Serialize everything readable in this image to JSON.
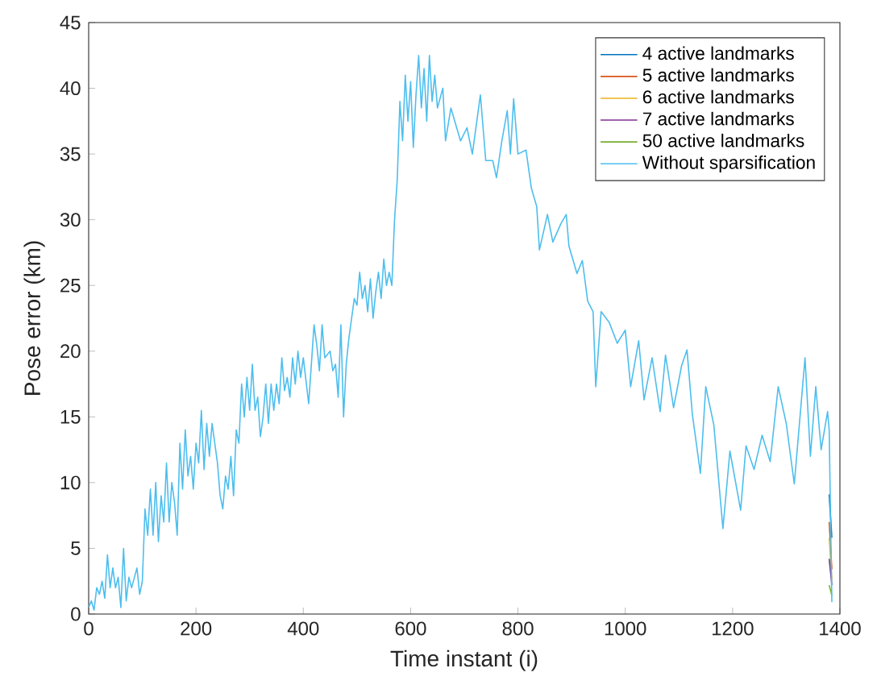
{
  "chart_data": {
    "type": "line",
    "xlabel": "Time instant (i)",
    "ylabel": "Pose error (km)",
    "xlim": [
      0,
      1400
    ],
    "ylim": [
      0,
      45
    ],
    "xticks": [
      0,
      200,
      400,
      600,
      800,
      1000,
      1200,
      1400
    ],
    "yticks": [
      0,
      5,
      10,
      15,
      20,
      25,
      30,
      35,
      40,
      45
    ],
    "legend": "top right",
    "grid": false,
    "x": [
      0,
      5,
      10,
      15,
      20,
      25,
      30,
      35,
      40,
      45,
      50,
      55,
      60,
      65,
      70,
      75,
      80,
      90,
      95,
      100,
      105,
      110,
      115,
      120,
      125,
      130,
      135,
      140,
      145,
      150,
      155,
      160,
      165,
      170,
      175,
      180,
      185,
      190,
      195,
      200,
      205,
      210,
      215,
      220,
      225,
      230,
      240,
      245,
      250,
      255,
      260,
      265,
      270,
      275,
      280,
      285,
      290,
      295,
      300,
      305,
      310,
      315,
      320,
      325,
      330,
      335,
      340,
      345,
      350,
      355,
      360,
      365,
      370,
      375,
      380,
      385,
      390,
      395,
      400,
      410,
      415,
      420,
      425,
      430,
      435,
      440,
      450,
      455,
      460,
      465,
      470,
      475,
      480,
      485,
      490,
      495,
      500,
      505,
      510,
      515,
      520,
      525,
      530,
      535,
      540,
      545,
      550,
      555,
      560,
      565,
      570,
      575,
      580,
      585,
      590,
      595,
      600,
      605,
      610,
      615,
      620,
      625,
      630,
      635,
      640,
      645,
      650,
      660,
      665,
      675,
      693,
      705,
      715,
      730,
      740,
      753,
      760,
      770,
      780,
      786,
      792,
      800,
      815,
      825,
      835,
      840,
      855,
      865,
      880,
      890,
      895,
      910,
      920,
      930,
      940,
      945,
      955,
      970,
      985,
      1000,
      1010,
      1025,
      1035,
      1050,
      1065,
      1075,
      1090,
      1105,
      1115,
      1125,
      1140,
      1150,
      1165,
      1182,
      1195,
      1215,
      1225,
      1240,
      1255,
      1270,
      1285,
      1300,
      1315,
      1335,
      1345,
      1355,
      1365,
      1377,
      1380,
      1385
    ],
    "series": [
      {
        "name": "4 active landmarks",
        "color": "#0072bd",
        "values": [
          null,
          null,
          null,
          null,
          null,
          null,
          null,
          null,
          null,
          null,
          null,
          null,
          null,
          null,
          null,
          null,
          null,
          null,
          null,
          null,
          null,
          null,
          null,
          null,
          null,
          null,
          null,
          null,
          null,
          null,
          null,
          null,
          null,
          null,
          null,
          null,
          null,
          null,
          null,
          null,
          null,
          null,
          null,
          null,
          null,
          null,
          null,
          null,
          null,
          null,
          null,
          null,
          null,
          null,
          null,
          null,
          null,
          null,
          null,
          null,
          null,
          null,
          null,
          null,
          null,
          null,
          null,
          null,
          null,
          null,
          null,
          null,
          null,
          null,
          null,
          null,
          null,
          null,
          null,
          null,
          null,
          null,
          null,
          null,
          null,
          null,
          null,
          null,
          null,
          null,
          null,
          null,
          null,
          null,
          null,
          null,
          null,
          null,
          null,
          null,
          null,
          null,
          null,
          null,
          null,
          null,
          null,
          null,
          null,
          null,
          null,
          null,
          null,
          null,
          null,
          null,
          null,
          null,
          null,
          null,
          null,
          null,
          null,
          null,
          null,
          null,
          null,
          null,
          null,
          null,
          null,
          null,
          null,
          null,
          null,
          null,
          null,
          null,
          null,
          null,
          null,
          null,
          null,
          null,
          null,
          null,
          null,
          null,
          null,
          null,
          null,
          null,
          null,
          null,
          null,
          null,
          null,
          null,
          null,
          null,
          null,
          null,
          null,
          null,
          null,
          null,
          null,
          null,
          null,
          null,
          null,
          null,
          null,
          null,
          null,
          null,
          null,
          null,
          null,
          null,
          null,
          null,
          null,
          null,
          null,
          null,
          null,
          null,
          9.1,
          5.8
        ]
      },
      {
        "name": "5 active landmarks",
        "color": "#d95319",
        "values": [
          null,
          null,
          null,
          null,
          null,
          null,
          null,
          null,
          null,
          null,
          null,
          null,
          null,
          null,
          null,
          null,
          null,
          null,
          null,
          null,
          null,
          null,
          null,
          null,
          null,
          null,
          null,
          null,
          null,
          null,
          null,
          null,
          null,
          null,
          null,
          null,
          null,
          null,
          null,
          null,
          null,
          null,
          null,
          null,
          null,
          null,
          null,
          null,
          null,
          null,
          null,
          null,
          null,
          null,
          null,
          null,
          null,
          null,
          null,
          null,
          null,
          null,
          null,
          null,
          null,
          null,
          null,
          null,
          null,
          null,
          null,
          null,
          null,
          null,
          null,
          null,
          null,
          null,
          null,
          null,
          null,
          null,
          null,
          null,
          null,
          null,
          null,
          null,
          null,
          null,
          null,
          null,
          null,
          null,
          null,
          null,
          null,
          null,
          null,
          null,
          null,
          null,
          null,
          null,
          null,
          null,
          null,
          null,
          null,
          null,
          null,
          null,
          null,
          null,
          null,
          null,
          null,
          null,
          null,
          null,
          null,
          null,
          null,
          null,
          null,
          null,
          null,
          null,
          null,
          null,
          null,
          null,
          null,
          null,
          null,
          null,
          null,
          null,
          null,
          null,
          null,
          null,
          null,
          null,
          null,
          null,
          null,
          null,
          null,
          null,
          null,
          null,
          null,
          null,
          null,
          null,
          null,
          null,
          null,
          null,
          null,
          null,
          null,
          null,
          null,
          null,
          null,
          null,
          null,
          null,
          null,
          null,
          null,
          null,
          null,
          null,
          null,
          null,
          null,
          null,
          null,
          null,
          null,
          null,
          null,
          null,
          null,
          null,
          7,
          3.4
        ]
      },
      {
        "name": "6 active landmarks",
        "color": "#edb120",
        "values": [
          null,
          null,
          null,
          null,
          null,
          null,
          null,
          null,
          null,
          null,
          null,
          null,
          null,
          null,
          null,
          null,
          null,
          null,
          null,
          null,
          null,
          null,
          null,
          null,
          null,
          null,
          null,
          null,
          null,
          null,
          null,
          null,
          null,
          null,
          null,
          null,
          null,
          null,
          null,
          null,
          null,
          null,
          null,
          null,
          null,
          null,
          null,
          null,
          null,
          null,
          null,
          null,
          null,
          null,
          null,
          null,
          null,
          null,
          null,
          null,
          null,
          null,
          null,
          null,
          null,
          null,
          null,
          null,
          null,
          null,
          null,
          null,
          null,
          null,
          null,
          null,
          null,
          null,
          null,
          null,
          null,
          null,
          null,
          null,
          null,
          null,
          null,
          null,
          null,
          null,
          null,
          null,
          null,
          null,
          null,
          null,
          null,
          null,
          null,
          null,
          null,
          null,
          null,
          null,
          null,
          null,
          null,
          null,
          null,
          null,
          null,
          null,
          null,
          null,
          null,
          null,
          null,
          null,
          null,
          null,
          null,
          null,
          null,
          null,
          null,
          null,
          null,
          null,
          null,
          null,
          null,
          null,
          null,
          null,
          null,
          null,
          null,
          null,
          null,
          null,
          null,
          null,
          null,
          null,
          null,
          null,
          null,
          null,
          null,
          null,
          null,
          null,
          null,
          null,
          null,
          null,
          null,
          null,
          null,
          null,
          null,
          null,
          null,
          null,
          null,
          null,
          null,
          null,
          null,
          null,
          null,
          null,
          null,
          null,
          null,
          null,
          null,
          null,
          null,
          null,
          null,
          null,
          null,
          null,
          null,
          null,
          null,
          null,
          5.8,
          2.6
        ]
      },
      {
        "name": "7 active landmarks",
        "color": "#7e2f8e",
        "values": [
          null,
          null,
          null,
          null,
          null,
          null,
          null,
          null,
          null,
          null,
          null,
          null,
          null,
          null,
          null,
          null,
          null,
          null,
          null,
          null,
          null,
          null,
          null,
          null,
          null,
          null,
          null,
          null,
          null,
          null,
          null,
          null,
          null,
          null,
          null,
          null,
          null,
          null,
          null,
          null,
          null,
          null,
          null,
          null,
          null,
          null,
          null,
          null,
          null,
          null,
          null,
          null,
          null,
          null,
          null,
          null,
          null,
          null,
          null,
          null,
          null,
          null,
          null,
          null,
          null,
          null,
          null,
          null,
          null,
          null,
          null,
          null,
          null,
          null,
          null,
          null,
          null,
          null,
          null,
          null,
          null,
          null,
          null,
          null,
          null,
          null,
          null,
          null,
          null,
          null,
          null,
          null,
          null,
          null,
          null,
          null,
          null,
          null,
          null,
          null,
          null,
          null,
          null,
          null,
          null,
          null,
          null,
          null,
          null,
          null,
          null,
          null,
          null,
          null,
          null,
          null,
          null,
          null,
          null,
          null,
          null,
          null,
          null,
          null,
          null,
          null,
          null,
          null,
          null,
          null,
          null,
          null,
          null,
          null,
          null,
          null,
          null,
          null,
          null,
          null,
          null,
          null,
          null,
          null,
          null,
          null,
          null,
          null,
          null,
          null,
          null,
          null,
          null,
          null,
          null,
          null,
          null,
          null,
          null,
          null,
          null,
          null,
          null,
          null,
          null,
          null,
          null,
          null,
          null,
          null,
          null,
          null,
          null,
          null,
          null,
          null,
          null,
          null,
          null,
          null,
          null,
          null,
          null,
          null,
          null,
          null,
          null,
          null,
          4.2,
          2.2
        ]
      },
      {
        "name": "50 active landmarks",
        "color": "#77ac30",
        "values": [
          null,
          null,
          null,
          null,
          null,
          null,
          null,
          null,
          null,
          null,
          null,
          null,
          null,
          null,
          null,
          null,
          null,
          null,
          null,
          null,
          null,
          null,
          null,
          null,
          null,
          null,
          null,
          null,
          null,
          null,
          null,
          null,
          null,
          null,
          null,
          null,
          null,
          null,
          null,
          null,
          null,
          null,
          null,
          null,
          null,
          null,
          null,
          null,
          null,
          null,
          null,
          null,
          null,
          null,
          null,
          null,
          null,
          null,
          null,
          null,
          null,
          null,
          null,
          null,
          null,
          null,
          null,
          null,
          null,
          null,
          null,
          null,
          null,
          null,
          null,
          null,
          null,
          null,
          null,
          null,
          null,
          null,
          null,
          null,
          null,
          null,
          null,
          null,
          null,
          null,
          null,
          null,
          null,
          null,
          null,
          null,
          null,
          null,
          null,
          null,
          null,
          null,
          null,
          null,
          null,
          null,
          null,
          null,
          null,
          null,
          null,
          null,
          null,
          null,
          null,
          null,
          null,
          null,
          null,
          null,
          null,
          null,
          null,
          null,
          null,
          null,
          null,
          null,
          null,
          null,
          null,
          null,
          null,
          null,
          null,
          null,
          null,
          null,
          null,
          null,
          null,
          null,
          null,
          null,
          null,
          null,
          null,
          null,
          null,
          null,
          null,
          null,
          null,
          null,
          null,
          null,
          null,
          null,
          null,
          null,
          null,
          null,
          null,
          null,
          null,
          null,
          null,
          null,
          null,
          null,
          null,
          null,
          null,
          null,
          null,
          null,
          null,
          null,
          null,
          null,
          null,
          null,
          null,
          null,
          null,
          null,
          null,
          null,
          2.2,
          1.4
        ]
      },
      {
        "name": "Without sparsification",
        "color": "#4dbeee",
        "values": [
          0.5,
          1,
          0.3,
          2,
          1.5,
          2.5,
          1.2,
          4.5,
          2,
          3.5,
          2,
          2.8,
          0.5,
          5,
          1,
          2.8,
          2,
          3.5,
          1.5,
          2.5,
          8,
          6,
          9.5,
          6,
          10,
          5.5,
          9,
          7,
          11.5,
          7,
          10,
          8.5,
          6,
          13,
          9.5,
          14,
          10.5,
          12,
          9.5,
          13,
          11.5,
          15.5,
          11,
          14.5,
          12,
          14.5,
          11.5,
          9,
          8,
          10.5,
          9.5,
          12,
          9,
          14,
          13,
          17.5,
          15,
          18,
          15.5,
          19,
          15.5,
          16.5,
          13.5,
          15,
          17.5,
          14.5,
          17.5,
          15.5,
          17.5,
          16,
          19.5,
          17,
          18,
          16.5,
          19.5,
          17.5,
          20,
          18,
          19.5,
          16,
          19,
          22,
          20.5,
          18.5,
          22,
          19.5,
          20,
          18.5,
          19,
          16.5,
          22,
          15,
          19,
          21,
          22.5,
          24,
          23.5,
          26,
          24,
          25,
          23,
          25.5,
          22.5,
          24.5,
          26,
          24,
          27,
          25,
          26,
          25,
          30,
          33,
          39,
          36,
          41,
          37.5,
          40.5,
          35.5,
          39.5,
          42.5,
          38.5,
          41.5,
          37.5,
          42.5,
          39,
          41,
          38.5,
          40,
          36,
          38.5,
          36,
          37,
          35,
          39.5,
          34.5,
          34.5,
          33.2,
          36,
          38.3,
          35,
          39.2,
          35,
          35.3,
          32.4,
          31,
          27.7,
          30.4,
          28.3,
          29.7,
          30.4,
          28,
          25.9,
          26.9,
          23.8,
          23,
          17.3,
          23,
          22.2,
          20.6,
          21.6,
          17.3,
          20.8,
          16.3,
          19.5,
          15.4,
          19.7,
          15.7,
          18.9,
          20.1,
          15.2,
          10.7,
          17.3,
          14.4,
          6.5,
          12.4,
          7.9,
          12.8,
          11,
          13.6,
          11.6,
          17.3,
          14.5,
          9.9,
          19.5,
          12,
          17.3,
          12.5,
          15.4,
          14,
          0.9
        ]
      }
    ]
  }
}
